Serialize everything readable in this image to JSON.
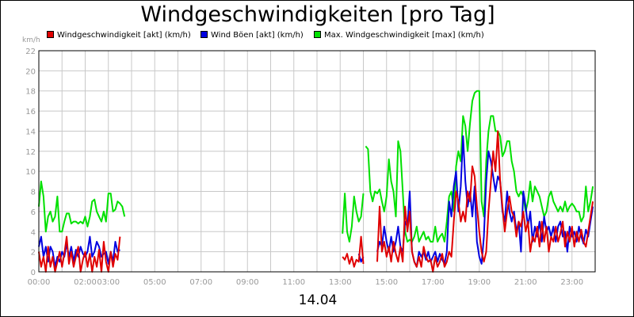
{
  "title": "Windgeschwindigkeiten [pro Tag]",
  "date_label": "14.04",
  "unit_label": "km/h",
  "legend": [
    {
      "label": "Windgeschwindigkeit [akt] (km/h)",
      "color": "#e00000"
    },
    {
      "label": "Wind Böen [akt] (km/h)",
      "color": "#0000e0"
    },
    {
      "label": "Max. Windgeschwindigkeit [max] (km/h)",
      "color": "#00e000"
    }
  ],
  "chart_data": {
    "type": "line",
    "title": "Windgeschwindigkeiten [pro Tag]",
    "xlabel": "14.04",
    "ylabel": "km/h",
    "xlim": [
      0,
      24
    ],
    "ylim": [
      0,
      22
    ],
    "yticks": [
      0,
      2,
      4,
      6,
      8,
      10,
      12,
      14,
      16,
      18,
      20,
      22
    ],
    "xtick_labels": [
      {
        "x": 0,
        "label": "00:00"
      },
      {
        "x": 2,
        "label": "02:00"
      },
      {
        "x": 3,
        "label": "03:00"
      },
      {
        "x": 5,
        "label": "05:00"
      },
      {
        "x": 7,
        "label": "07:00"
      },
      {
        "x": 9,
        "label": "09:00"
      },
      {
        "x": 11,
        "label": "11:00"
      },
      {
        "x": 13,
        "label": "13:00"
      },
      {
        "x": 15,
        "label": "15:00"
      },
      {
        "x": 17,
        "label": "17:00"
      },
      {
        "x": 19,
        "label": "19:00"
      },
      {
        "x": 21,
        "label": "21:00"
      },
      {
        "x": 23,
        "label": "23:00"
      }
    ],
    "grid": true,
    "legend_position": "top-left",
    "series": [
      {
        "name": "Windgeschwindigkeit [akt] (km/h)",
        "color": "#e00000",
        "segments": [
          {
            "x": [
              0.0,
              0.1,
              0.2,
              0.3,
              0.4,
              0.5,
              0.6,
              0.7,
              0.8,
              0.9,
              1.0,
              1.1,
              1.2,
              1.3,
              1.4,
              1.5,
              1.6,
              1.7,
              1.8,
              1.9,
              2.0,
              2.1,
              2.2,
              2.3,
              2.4,
              2.5,
              2.6,
              2.7,
              2.8,
              2.9,
              3.0,
              3.1,
              3.2,
              3.3,
              3.4,
              3.5
            ],
            "y": [
              2.0,
              0.5,
              1.5,
              0.0,
              2.5,
              0.5,
              1.5,
              0.0,
              1.0,
              2.0,
              0.5,
              1.8,
              3.5,
              0.8,
              2.0,
              0.5,
              1.5,
              2.5,
              0.0,
              1.2,
              2.0,
              0.5,
              1.8,
              0.0,
              1.5,
              0.5,
              2.2,
              0.0,
              3.0,
              1.0,
              0.0,
              2.0,
              0.5,
              1.8,
              1.2,
              3.5
            ]
          },
          {
            "x": [
              13.1,
              13.2,
              13.3,
              13.4,
              13.5,
              13.6,
              13.7,
              13.8,
              13.9,
              14.0
            ],
            "y": [
              1.5,
              1.2,
              1.8,
              0.8,
              1.5,
              0.5,
              1.2,
              1.0,
              3.5,
              0.8
            ]
          },
          {
            "x": [
              14.6,
              14.7,
              14.8,
              14.9,
              15.0,
              15.1,
              15.2,
              15.3,
              15.4,
              15.5,
              15.6,
              15.7,
              15.8,
              15.9,
              16.0,
              16.1,
              16.2,
              16.3,
              16.4,
              16.5,
              16.6,
              16.7,
              16.8,
              16.9,
              17.0,
              17.1,
              17.2,
              17.3,
              17.4,
              17.5,
              17.6,
              17.7,
              17.8,
              17.9,
              18.0,
              18.1,
              18.2,
              18.3,
              18.4,
              18.5,
              18.6,
              18.7,
              18.8,
              18.9,
              19.0,
              19.1,
              19.2,
              19.3,
              19.4,
              19.5,
              19.6,
              19.7,
              19.8,
              19.9,
              20.0,
              20.1,
              20.2,
              20.3,
              20.4,
              20.5,
              20.6,
              20.7,
              20.8,
              20.9,
              21.0,
              21.1,
              21.2,
              21.3,
              21.4,
              21.5,
              21.6,
              21.7,
              21.8,
              21.9,
              22.0,
              22.1,
              22.2,
              22.3,
              22.4,
              22.5,
              22.6,
              22.7,
              22.8,
              22.9,
              23.0,
              23.1,
              23.2,
              23.3,
              23.4,
              23.5,
              23.6,
              23.7,
              23.8,
              23.9
            ],
            "y": [
              1.0,
              6.5,
              2.0,
              3.0,
              1.5,
              2.5,
              1.0,
              3.0,
              1.8,
              1.0,
              2.5,
              1.0,
              6.5,
              4.0,
              6.0,
              2.0,
              1.0,
              0.5,
              1.5,
              0.5,
              2.5,
              1.5,
              1.0,
              1.2,
              0.0,
              1.5,
              0.5,
              1.0,
              1.8,
              0.5,
              1.0,
              2.0,
              1.5,
              5.0,
              8.0,
              7.0,
              5.0,
              6.0,
              5.0,
              8.0,
              7.0,
              10.5,
              9.5,
              6.5,
              4.0,
              2.0,
              1.0,
              2.0,
              6.0,
              9.0,
              12.0,
              10.0,
              14.0,
              9.0,
              6.5,
              4.0,
              6.0,
              7.5,
              6.0,
              5.5,
              3.5,
              5.0,
              4.5,
              6.0,
              4.0,
              5.0,
              2.0,
              3.5,
              3.0,
              4.5,
              2.5,
              5.0,
              3.0,
              4.5,
              2.0,
              3.5,
              3.0,
              4.5,
              3.0,
              3.8,
              5.0,
              2.5,
              4.0,
              3.0,
              4.5,
              2.5,
              4.0,
              3.0,
              4.2,
              3.0,
              2.5,
              4.0,
              5.5,
              7.0
            ]
          }
        ]
      },
      {
        "name": "Wind Böen [akt] (km/h)",
        "color": "#0000e0",
        "segments": [
          {
            "x": [
              0.0,
              0.1,
              0.2,
              0.3,
              0.4,
              0.5,
              0.6,
              0.7,
              0.8,
              0.9,
              1.0,
              1.1,
              1.2,
              1.3,
              1.4,
              1.5,
              1.6,
              1.7,
              1.8,
              1.9,
              2.0,
              2.1,
              2.2,
              2.3,
              2.4,
              2.5,
              2.6,
              2.7,
              2.8,
              2.9,
              3.0,
              3.1,
              3.2,
              3.3,
              3.4,
              3.5
            ],
            "y": [
              2.5,
              3.5,
              1.5,
              2.5,
              1.0,
              2.5,
              2.0,
              0.5,
              1.5,
              1.0,
              2.0,
              1.5,
              2.8,
              1.5,
              2.5,
              1.0,
              2.2,
              1.5,
              2.5,
              1.8,
              1.5,
              2.0,
              3.5,
              1.5,
              2.0,
              3.0,
              2.5,
              1.5,
              1.8,
              2.0,
              0.8,
              2.0,
              1.0,
              3.0,
              2.0,
              2.2
            ]
          },
          {
            "x": [
              13.8,
              13.9,
              14.0
            ],
            "y": [
              1.8,
              1.0,
              1.5
            ]
          },
          {
            "x": [
              14.6,
              14.7,
              14.8,
              14.9,
              15.0,
              15.1,
              15.2,
              15.3,
              15.4,
              15.5,
              15.6,
              15.7,
              15.8,
              15.9,
              16.0,
              16.1,
              16.2,
              16.3,
              16.4,
              16.5,
              16.6,
              16.7,
              16.8,
              16.9,
              17.0,
              17.1,
              17.2,
              17.3,
              17.4,
              17.5,
              17.6,
              17.7,
              17.8,
              17.9,
              18.0,
              18.1,
              18.2,
              18.3,
              18.4,
              18.5,
              18.6,
              18.7,
              18.8,
              18.9,
              19.0,
              19.1,
              19.2,
              19.3,
              19.4,
              19.5,
              19.6,
              19.7,
              19.8,
              19.9,
              20.0,
              20.1,
              20.2,
              20.3,
              20.4,
              20.5,
              20.6,
              20.7,
              20.8,
              20.9,
              21.0,
              21.1,
              21.2,
              21.3,
              21.4,
              21.5,
              21.6,
              21.7,
              21.8,
              21.9,
              22.0,
              22.1,
              22.2,
              22.3,
              22.4,
              22.5,
              22.6,
              22.7,
              22.8,
              22.9,
              23.0,
              23.1,
              23.2,
              23.3,
              23.4,
              23.5,
              23.6,
              23.7,
              23.8,
              23.9
            ],
            "y": [
              2.0,
              3.0,
              2.5,
              4.5,
              3.0,
              2.0,
              3.5,
              2.0,
              3.0,
              4.5,
              2.5,
              2.0,
              5.0,
              4.5,
              8.0,
              2.0,
              1.0,
              0.5,
              2.0,
              1.5,
              2.0,
              1.2,
              2.0,
              1.0,
              1.5,
              2.0,
              1.0,
              1.8,
              1.2,
              0.8,
              2.0,
              7.0,
              5.5,
              8.5,
              10.0,
              6.0,
              8.5,
              13.5,
              9.0,
              6.5,
              8.0,
              5.5,
              8.5,
              3.0,
              1.5,
              0.8,
              3.5,
              9.0,
              12.0,
              11.0,
              9.5,
              8.0,
              9.5,
              9.0,
              6.0,
              5.0,
              8.0,
              6.0,
              5.0,
              6.0,
              4.0,
              5.0,
              2.0,
              8.0,
              6.5,
              4.5,
              6.0,
              3.0,
              4.5,
              3.5,
              5.0,
              3.0,
              5.5,
              4.0,
              4.5,
              3.5,
              4.5,
              3.0,
              4.5,
              5.0,
              3.5,
              4.0,
              2.0,
              4.5,
              3.5,
              4.0,
              3.0,
              4.5,
              3.5,
              2.8,
              4.2,
              3.5,
              5.0,
              6.5
            ]
          }
        ]
      },
      {
        "name": "Max. Windgeschwindigkeit [max] (km/h)",
        "color": "#00e000",
        "segments": [
          {
            "x": [
              0.0,
              0.1,
              0.2,
              0.3,
              0.4,
              0.5,
              0.6,
              0.7,
              0.8,
              0.9,
              1.0,
              1.1,
              1.2,
              1.3,
              1.4,
              1.5,
              1.6,
              1.7,
              1.8,
              1.9,
              2.0,
              2.1,
              2.2,
              2.3,
              2.4,
              2.5,
              2.6,
              2.7,
              2.8,
              2.9,
              3.0,
              3.1,
              3.2,
              3.3,
              3.4,
              3.5,
              3.6,
              3.7
            ],
            "y": [
              6.5,
              9.0,
              7.5,
              4.0,
              5.5,
              6.0,
              5.0,
              5.5,
              7.5,
              4.0,
              4.0,
              5.0,
              5.8,
              5.8,
              4.8,
              5.0,
              5.0,
              4.8,
              5.0,
              4.8,
              5.5,
              4.5,
              5.5,
              7.0,
              7.2,
              6.0,
              5.5,
              5.0,
              6.0,
              5.0,
              7.8,
              7.8,
              6.0,
              6.2,
              7.0,
              6.8,
              6.5,
              5.5
            ]
          },
          {
            "x": [
              13.1,
              13.2,
              13.3,
              13.4,
              13.5,
              13.6,
              13.7,
              13.8,
              13.9,
              14.0
            ],
            "y": [
              3.8,
              7.8,
              4.0,
              3.0,
              4.5,
              7.5,
              6.0,
              5.0,
              5.5,
              7.8
            ]
          },
          {
            "x": [
              14.1,
              14.2,
              14.3,
              14.4,
              14.5,
              14.6,
              14.7,
              14.8,
              14.9,
              15.0,
              15.1,
              15.2,
              15.3,
              15.4,
              15.5,
              15.6,
              15.7,
              15.8,
              15.9,
              16.0,
              16.1,
              16.2,
              16.3,
              16.4,
              16.5,
              16.6,
              16.7,
              16.8,
              16.9,
              17.0,
              17.1,
              17.2,
              17.3,
              17.4,
              17.5,
              17.6,
              17.7,
              17.8,
              17.9,
              18.0,
              18.1,
              18.2,
              18.3,
              18.4,
              18.5,
              18.6,
              18.7,
              18.8,
              18.9,
              19.0,
              19.1,
              19.2,
              19.3,
              19.4,
              19.5,
              19.6,
              19.7,
              19.8,
              19.9,
              20.0,
              20.1,
              20.2,
              20.3,
              20.4,
              20.5,
              20.6,
              20.7,
              20.8,
              20.9,
              21.0,
              21.1,
              21.2,
              21.3,
              21.4,
              21.5,
              21.6,
              21.7,
              21.8,
              21.9,
              22.0,
              22.1,
              22.2,
              22.3,
              22.4,
              22.5,
              22.6,
              22.7,
              22.8,
              22.9,
              23.0,
              23.1,
              23.2,
              23.3,
              23.4,
              23.5,
              23.6,
              23.7,
              23.8,
              23.9
            ],
            "y": [
              12.5,
              12.2,
              8.0,
              7.0,
              8.0,
              7.8,
              8.2,
              7.0,
              6.0,
              7.5,
              11.2,
              9.0,
              8.0,
              5.5,
              13.0,
              12.0,
              8.0,
              4.0,
              3.0,
              3.2,
              3.0,
              3.5,
              4.5,
              3.0,
              3.5,
              4.0,
              3.2,
              3.5,
              3.0,
              3.0,
              4.5,
              3.0,
              3.5,
              3.8,
              3.0,
              5.0,
              7.5,
              8.0,
              6.0,
              10.5,
              12.0,
              11.0,
              15.5,
              14.5,
              12.0,
              14.8,
              17.0,
              17.8,
              18.0,
              18.0,
              7.0,
              5.5,
              11.0,
              14.0,
              15.5,
              15.5,
              14.0,
              14.0,
              13.5,
              11.5,
              12.0,
              13.0,
              13.0,
              11.0,
              10.0,
              8.0,
              7.5,
              8.0,
              7.5,
              6.0,
              7.0,
              9.0,
              7.0,
              8.5,
              8.0,
              7.5,
              6.5,
              5.5,
              6.0,
              7.5,
              8.0,
              7.0,
              6.5,
              6.0,
              6.5,
              6.0,
              7.0,
              6.0,
              6.5,
              6.8,
              6.5,
              6.0,
              6.0,
              5.0,
              5.5,
              8.5,
              6.0,
              7.0,
              8.5
            ]
          }
        ]
      }
    ]
  }
}
